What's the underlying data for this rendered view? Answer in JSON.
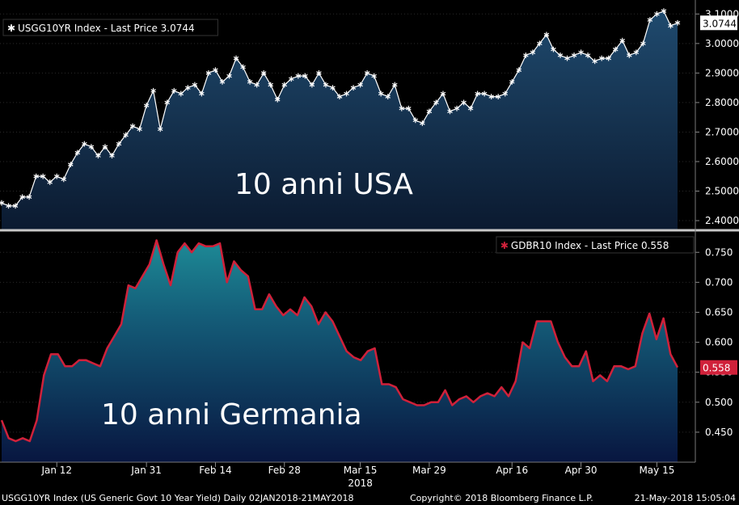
{
  "footer": {
    "left": "USGG10YR Index (US Generic Govt 10 Year Yield)  Daily 02JAN2018-21MAY2018",
    "center": "Copyright© 2018 Bloomberg Finance L.P.",
    "right": "21-May-2018 15:05:04"
  },
  "x_axis": {
    "tick_labels": [
      "Jan 12",
      "Jan 31",
      "Feb 14",
      "Feb 28",
      "Mar 15",
      "Mar 29",
      "Apr 16",
      "Apr 30",
      "May 15"
    ],
    "tick_indices": [
      8,
      21,
      31,
      41,
      52,
      62,
      74,
      84,
      95
    ],
    "year_label": "2018"
  },
  "colors": {
    "background": "#000000",
    "divider": "#c8c8c8",
    "usa_line": "#ffffff",
    "usa_fill_top": "#1f4a6e",
    "usa_fill_bottom": "#0b1a30",
    "de_line": "#d0213a",
    "de_fill_top": "#1d8a96",
    "de_fill_bottom": "#081640",
    "last_price_box_usa": "#ffffff",
    "last_price_box_de": "#d0213a"
  },
  "chart_data": [
    {
      "type": "area",
      "legend": "USGG10YR Index - Last Price 3.0744",
      "last_price_label": "3.0744",
      "overlay_text": "10 anni USA",
      "ylim": [
        2.37,
        3.12
      ],
      "y_ticks": [
        "2.4000",
        "2.5000",
        "2.6000",
        "2.7000",
        "2.8000",
        "2.9000",
        "3.0000",
        "3.1000"
      ],
      "y_tick_values": [
        2.4,
        2.5,
        2.6,
        2.7,
        2.8,
        2.9,
        3.0,
        3.1
      ],
      "series": [
        {
          "marker": "asterisk",
          "values": [
            2.46,
            2.45,
            2.45,
            2.48,
            2.48,
            2.55,
            2.55,
            2.53,
            2.55,
            2.54,
            2.59,
            2.63,
            2.66,
            2.65,
            2.62,
            2.65,
            2.62,
            2.66,
            2.69,
            2.72,
            2.71,
            2.79,
            2.84,
            2.71,
            2.8,
            2.84,
            2.83,
            2.85,
            2.86,
            2.83,
            2.9,
            2.91,
            2.87,
            2.89,
            2.95,
            2.92,
            2.87,
            2.86,
            2.9,
            2.86,
            2.81,
            2.86,
            2.88,
            2.89,
            2.89,
            2.86,
            2.9,
            2.86,
            2.85,
            2.82,
            2.83,
            2.85,
            2.86,
            2.9,
            2.89,
            2.83,
            2.82,
            2.86,
            2.78,
            2.78,
            2.74,
            2.73,
            2.77,
            2.8,
            2.83,
            2.77,
            2.78,
            2.8,
            2.78,
            2.83,
            2.83,
            2.82,
            2.82,
            2.83,
            2.87,
            2.91,
            2.96,
            2.97,
            3.0,
            3.03,
            2.98,
            2.96,
            2.95,
            2.96,
            2.97,
            2.96,
            2.94,
            2.95,
            2.95,
            2.98,
            3.01,
            2.96,
            2.97,
            3.0,
            3.08,
            3.1,
            3.11,
            3.06,
            3.07
          ]
        }
      ]
    },
    {
      "type": "area",
      "legend": "GDBR10 Index - Last Price 0.558",
      "last_price_label": "0.558",
      "overlay_text": "10 anni Germania",
      "ylim": [
        0.4,
        0.78
      ],
      "y_ticks": [
        "0.450",
        "0.500",
        "0.550",
        "0.600",
        "0.650",
        "0.700",
        "0.750"
      ],
      "y_tick_values": [
        0.45,
        0.5,
        0.55,
        0.6,
        0.65,
        0.7,
        0.75
      ],
      "series": [
        {
          "marker": "none",
          "values": [
            0.47,
            0.44,
            0.435,
            0.44,
            0.435,
            0.47,
            0.545,
            0.58,
            0.58,
            0.56,
            0.56,
            0.57,
            0.57,
            0.565,
            0.56,
            0.59,
            0.61,
            0.63,
            0.695,
            0.69,
            0.71,
            0.73,
            0.77,
            0.73,
            0.695,
            0.75,
            0.765,
            0.75,
            0.765,
            0.76,
            0.76,
            0.765,
            0.7,
            0.735,
            0.72,
            0.71,
            0.655,
            0.655,
            0.68,
            0.66,
            0.645,
            0.655,
            0.645,
            0.675,
            0.66,
            0.63,
            0.65,
            0.635,
            0.61,
            0.585,
            0.575,
            0.57,
            0.585,
            0.59,
            0.53,
            0.53,
            0.525,
            0.505,
            0.5,
            0.495,
            0.495,
            0.5,
            0.5,
            0.52,
            0.495,
            0.505,
            0.51,
            0.5,
            0.51,
            0.515,
            0.51,
            0.525,
            0.51,
            0.535,
            0.6,
            0.59,
            0.635,
            0.635,
            0.635,
            0.6,
            0.575,
            0.56,
            0.56,
            0.585,
            0.535,
            0.545,
            0.535,
            0.56,
            0.56,
            0.555,
            0.56,
            0.615,
            0.648,
            0.605,
            0.64,
            0.58,
            0.558
          ]
        }
      ]
    }
  ]
}
